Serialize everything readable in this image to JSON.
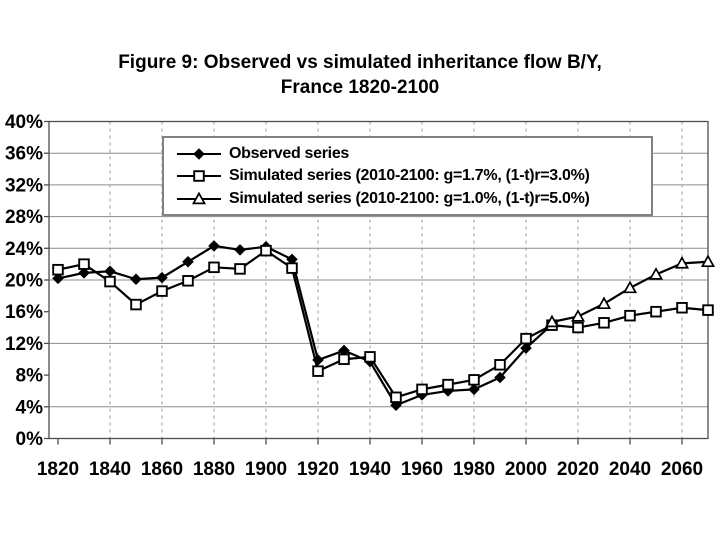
{
  "slide": {
    "background": "#ffffff"
  },
  "chart_data": {
    "type": "line",
    "title": "Figure 9: Observed vs simulated inheritance flow B/Y, France 1820-2100",
    "title_line1": "Figure 9: Observed vs simulated inheritance flow B/Y,",
    "title_line2": "France 1820-2100",
    "xlabel": "",
    "ylabel": "",
    "xlim": [
      1820,
      2070
    ],
    "ylim": [
      0,
      40
    ],
    "x_tick_labels": [
      "1820",
      "1840",
      "1860",
      "1880",
      "1900",
      "1920",
      "1940",
      "1960",
      "1980",
      "2000",
      "2020",
      "2040",
      "2060"
    ],
    "y_tick_labels": [
      "40%",
      "36%",
      "32%",
      "28%",
      "24%",
      "20%",
      "16%",
      "12%",
      "8%",
      "4%",
      "0%"
    ],
    "grid_horizontal_values": [
      36,
      32,
      28,
      24,
      20,
      12,
      4
    ],
    "grid_vertical_years": [
      1840,
      1860,
      1880,
      1900,
      1920,
      1940,
      1960,
      1980,
      2000,
      2020,
      2040,
      2060
    ],
    "legend_position": "top-inside",
    "colors": {
      "series": "#000000",
      "grid": "#8c8c8c",
      "grid_dashed": "#999999",
      "frame": "#4d4d4d",
      "text": "#000000",
      "legend_border": "#828282",
      "background": "#ffffff"
    },
    "series": [
      {
        "name": "Observed series",
        "marker": "diamond-filled",
        "data": [
          [
            1820,
            20.2
          ],
          [
            1830,
            20.9
          ],
          [
            1840,
            21.1
          ],
          [
            1850,
            20.1
          ],
          [
            1860,
            20.3
          ],
          [
            1870,
            22.3
          ],
          [
            1880,
            24.3
          ],
          [
            1890,
            23.8
          ],
          [
            1900,
            24.2
          ],
          [
            1910,
            22.6
          ],
          [
            1920,
            9.9
          ],
          [
            1930,
            11.1
          ],
          [
            1940,
            9.7
          ],
          [
            1950,
            4.2
          ],
          [
            1960,
            5.5
          ],
          [
            1970,
            6.0
          ],
          [
            1980,
            6.2
          ],
          [
            1990,
            7.7
          ],
          [
            2000,
            11.4
          ],
          [
            2010,
            14.4
          ]
        ]
      },
      {
        "name": "Simulated series (2010-2100: g=1.7%, (1-t)r=3.0%)",
        "marker": "square-open",
        "data": [
          [
            1820,
            21.3
          ],
          [
            1830,
            22.0
          ],
          [
            1840,
            19.8
          ],
          [
            1850,
            16.9
          ],
          [
            1860,
            18.6
          ],
          [
            1870,
            19.9
          ],
          [
            1880,
            21.6
          ],
          [
            1890,
            21.4
          ],
          [
            1900,
            23.7
          ],
          [
            1910,
            21.5
          ],
          [
            1920,
            8.5
          ],
          [
            1930,
            10.0
          ],
          [
            1940,
            10.3
          ],
          [
            1950,
            5.2
          ],
          [
            1960,
            6.2
          ],
          [
            1970,
            6.8
          ],
          [
            1980,
            7.4
          ],
          [
            1990,
            9.3
          ],
          [
            2000,
            12.6
          ],
          [
            2010,
            14.3
          ],
          [
            2020,
            14.0
          ],
          [
            2030,
            14.6
          ],
          [
            2040,
            15.5
          ],
          [
            2050,
            16.0
          ],
          [
            2060,
            16.5
          ],
          [
            2070,
            16.2
          ]
        ]
      },
      {
        "name": "Simulated series (2010-2100: g=1.0%, (1-t)r=5.0%)",
        "marker": "triangle-open",
        "data": [
          [
            2010,
            14.7
          ],
          [
            2020,
            15.4
          ],
          [
            2030,
            17.0
          ],
          [
            2040,
            19.0
          ],
          [
            2050,
            20.7
          ],
          [
            2060,
            22.1
          ],
          [
            2070,
            22.3
          ]
        ]
      }
    ]
  }
}
